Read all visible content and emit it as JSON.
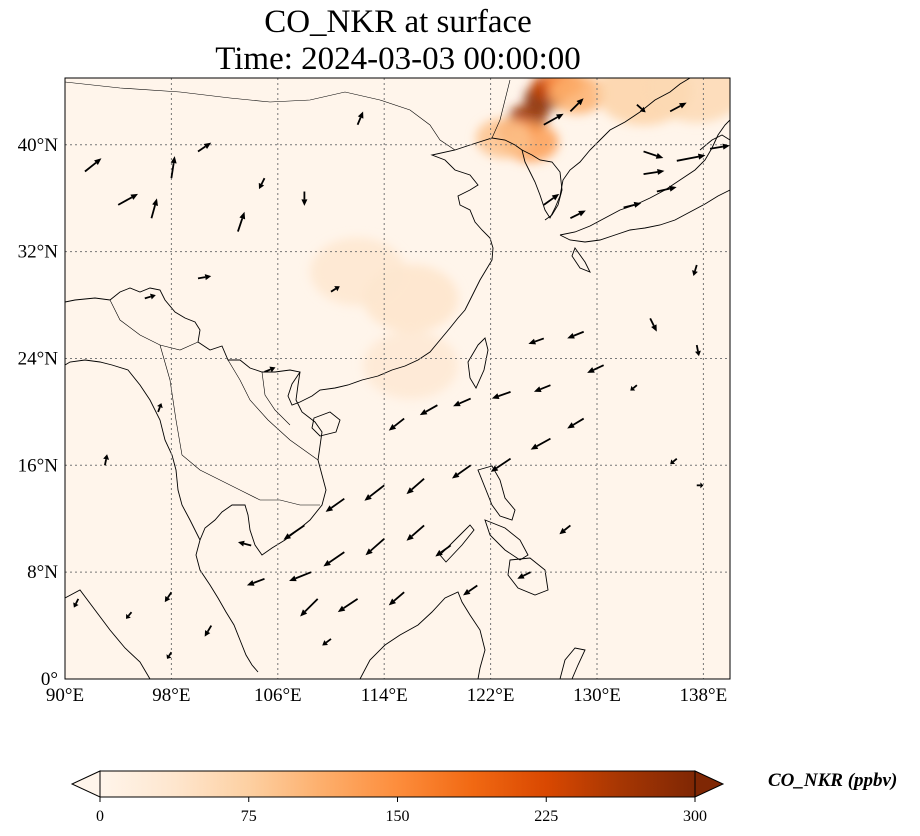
{
  "title": {
    "line1": "CO_NKR at surface",
    "line2": "Time: 2024-03-03 00:00:00"
  },
  "map": {
    "projection": "PlateCarree",
    "lon_range": [
      90,
      140
    ],
    "lat_range": [
      0,
      45
    ],
    "gridlines": "dotted gray",
    "lon_ticks": [
      {
        "value": 90,
        "label": "90°E"
      },
      {
        "value": 98,
        "label": "98°E"
      },
      {
        "value": 106,
        "label": "106°E"
      },
      {
        "value": 114,
        "label": "114°E"
      },
      {
        "value": 122,
        "label": "122°E"
      },
      {
        "value": 130,
        "label": "130°E"
      },
      {
        "value": 138,
        "label": "138°E"
      }
    ],
    "lat_ticks": [
      {
        "value": 0,
        "label": "0°"
      },
      {
        "value": 8,
        "label": "8°N"
      },
      {
        "value": 16,
        "label": "16°N"
      },
      {
        "value": 24,
        "label": "24°N"
      },
      {
        "value": 32,
        "label": "32°N"
      },
      {
        "value": 40,
        "label": "40°N"
      }
    ],
    "background_color": "#fff5eb",
    "hotspots": [
      {
        "lon": 126.0,
        "lat": 43.5,
        "value": 300
      },
      {
        "lon": 124.8,
        "lat": 42.0,
        "value": 280
      },
      {
        "lon": 126.5,
        "lat": 44.3,
        "value": 240
      },
      {
        "lon": 124.0,
        "lat": 41.0,
        "value": 200
      },
      {
        "lon": 127.5,
        "lat": 44.6,
        "value": 160
      },
      {
        "lon": 125.0,
        "lat": 40.2,
        "value": 130
      },
      {
        "lon": 128.5,
        "lat": 43.8,
        "value": 110
      },
      {
        "lon": 123.0,
        "lat": 40.5,
        "value": 90
      },
      {
        "lon": 133.5,
        "lat": 44.0,
        "value": 70
      },
      {
        "lon": 137.5,
        "lat": 44.2,
        "value": 60
      },
      {
        "lon": 116.0,
        "lat": 28.5,
        "value": 40
      },
      {
        "lon": 112.0,
        "lat": 30.5,
        "value": 35
      },
      {
        "lon": 116.0,
        "lat": 23.5,
        "value": 30
      }
    ],
    "wind_vectors": [
      {
        "lon": 91.5,
        "lat": 38,
        "u": 1.5,
        "v": 1.2
      },
      {
        "lon": 94,
        "lat": 35.5,
        "u": 1.8,
        "v": 1.0
      },
      {
        "lon": 96.5,
        "lat": 34.5,
        "u": 0.5,
        "v": 1.8
      },
      {
        "lon": 98,
        "lat": 37.5,
        "u": 0.3,
        "v": 2.0
      },
      {
        "lon": 100,
        "lat": 39.5,
        "u": 1.2,
        "v": 0.8
      },
      {
        "lon": 103,
        "lat": 33.5,
        "u": 0.6,
        "v": 1.8
      },
      {
        "lon": 105,
        "lat": 37.5,
        "u": -0.5,
        "v": -1.0
      },
      {
        "lon": 108,
        "lat": 36.5,
        "u": 0.0,
        "v": -1.3
      },
      {
        "lon": 112,
        "lat": 41.5,
        "u": 0.5,
        "v": 1.2
      },
      {
        "lon": 110,
        "lat": 29,
        "u": 0.8,
        "v": 0.5
      },
      {
        "lon": 96,
        "lat": 28.5,
        "u": 1.0,
        "v": 0.3
      },
      {
        "lon": 100,
        "lat": 30,
        "u": 1.2,
        "v": 0.2
      },
      {
        "lon": 105,
        "lat": 23,
        "u": 1.0,
        "v": 0.4
      },
      {
        "lon": 97,
        "lat": 20,
        "u": 0.3,
        "v": 0.8
      },
      {
        "lon": 93,
        "lat": 16,
        "u": 0.2,
        "v": 1.0
      },
      {
        "lon": 126,
        "lat": 41.5,
        "u": 1.8,
        "v": 1.0
      },
      {
        "lon": 128,
        "lat": 42.5,
        "u": 1.2,
        "v": 1.2
      },
      {
        "lon": 133.5,
        "lat": 39.5,
        "u": 1.8,
        "v": -0.6
      },
      {
        "lon": 136,
        "lat": 38.8,
        "u": 2.6,
        "v": 0.5
      },
      {
        "lon": 138.5,
        "lat": 39.7,
        "u": 1.8,
        "v": 0.3
      },
      {
        "lon": 133.5,
        "lat": 37.8,
        "u": 1.9,
        "v": 0.3
      },
      {
        "lon": 134.5,
        "lat": 36.5,
        "u": 1.8,
        "v": 0.4
      },
      {
        "lon": 132,
        "lat": 35.3,
        "u": 1.6,
        "v": 0.4
      },
      {
        "lon": 135.5,
        "lat": 42.5,
        "u": 1.5,
        "v": 0.8
      },
      {
        "lon": 133,
        "lat": 43,
        "u": 0.8,
        "v": -0.7
      },
      {
        "lon": 126,
        "lat": 35.5,
        "u": 1.4,
        "v": 1.0
      },
      {
        "lon": 128,
        "lat": 34.5,
        "u": 1.4,
        "v": 0.7
      },
      {
        "lon": 126,
        "lat": 25.5,
        "u": -1.4,
        "v": -0.5
      },
      {
        "lon": 129,
        "lat": 26,
        "u": -1.5,
        "v": -0.6
      },
      {
        "lon": 130.5,
        "lat": 23.5,
        "u": -1.5,
        "v": -0.7
      },
      {
        "lon": 126.5,
        "lat": 22,
        "u": -1.5,
        "v": -0.6
      },
      {
        "lon": 123.5,
        "lat": 21.5,
        "u": -1.7,
        "v": -0.6
      },
      {
        "lon": 120.5,
        "lat": 21,
        "u": -1.6,
        "v": -0.7
      },
      {
        "lon": 118,
        "lat": 20.5,
        "u": -1.6,
        "v": -0.9
      },
      {
        "lon": 115.5,
        "lat": 19.5,
        "u": -1.4,
        "v": -1.1
      },
      {
        "lon": 129,
        "lat": 19.5,
        "u": -1.5,
        "v": -0.9
      },
      {
        "lon": 126.5,
        "lat": 18,
        "u": -1.8,
        "v": -1.0
      },
      {
        "lon": 123.5,
        "lat": 16.5,
        "u": -1.8,
        "v": -1.2
      },
      {
        "lon": 120.5,
        "lat": 16,
        "u": -1.7,
        "v": -1.2
      },
      {
        "lon": 117,
        "lat": 15,
        "u": -1.6,
        "v": -1.4
      },
      {
        "lon": 114,
        "lat": 14.5,
        "u": -1.8,
        "v": -1.4
      },
      {
        "lon": 111,
        "lat": 13.5,
        "u": -1.7,
        "v": -1.2
      },
      {
        "lon": 108,
        "lat": 11.5,
        "u": -1.9,
        "v": -1.3
      },
      {
        "lon": 117,
        "lat": 11.5,
        "u": -1.6,
        "v": -1.4
      },
      {
        "lon": 114,
        "lat": 10.5,
        "u": -1.7,
        "v": -1.5
      },
      {
        "lon": 111,
        "lat": 9.5,
        "u": -1.9,
        "v": -1.3
      },
      {
        "lon": 108.5,
        "lat": 8,
        "u": -2.0,
        "v": -0.8
      },
      {
        "lon": 105,
        "lat": 7.5,
        "u": -1.6,
        "v": -0.6
      },
      {
        "lon": 112,
        "lat": 6,
        "u": -1.8,
        "v": -1.2
      },
      {
        "lon": 109,
        "lat": 6,
        "u": -1.6,
        "v": -1.6
      },
      {
        "lon": 115.5,
        "lat": 6.5,
        "u": -1.4,
        "v": -1.2
      },
      {
        "lon": 119,
        "lat": 10,
        "u": -1.4,
        "v": -1.0
      },
      {
        "lon": 125,
        "lat": 8,
        "u": -1.2,
        "v": -0.6
      },
      {
        "lon": 128,
        "lat": 11.5,
        "u": -1.0,
        "v": -0.8
      },
      {
        "lon": 121,
        "lat": 7,
        "u": -1.3,
        "v": -0.9
      },
      {
        "lon": 101,
        "lat": 4,
        "u": -0.6,
        "v": -1.0
      },
      {
        "lon": 98,
        "lat": 6.5,
        "u": -0.6,
        "v": -0.9
      },
      {
        "lon": 104,
        "lat": 10,
        "u": -1.2,
        "v": 0.3
      },
      {
        "lon": 110,
        "lat": 3,
        "u": -0.8,
        "v": -0.6
      },
      {
        "lon": 95,
        "lat": 5,
        "u": -0.5,
        "v": -0.6
      },
      {
        "lon": 91,
        "lat": 6,
        "u": -0.4,
        "v": -0.8
      },
      {
        "lon": 98,
        "lat": 2,
        "u": -0.4,
        "v": -0.6
      },
      {
        "lon": 134,
        "lat": 27,
        "u": 0.6,
        "v": -1.2
      },
      {
        "lon": 137.5,
        "lat": 25,
        "u": 0.2,
        "v": -1.0
      },
      {
        "lon": 136,
        "lat": 16.5,
        "u": -0.6,
        "v": -0.5
      },
      {
        "lon": 137.5,
        "lat": 14.5,
        "u": 0.6,
        "v": 0.0
      },
      {
        "lon": 133,
        "lat": 22,
        "u": -0.6,
        "v": -0.5
      },
      {
        "lon": 137.5,
        "lat": 31,
        "u": -0.3,
        "v": -1.0
      }
    ]
  },
  "colorbar": {
    "label": "CO_NKR (ppbv)",
    "min": 0,
    "max": 300,
    "ticks": [
      {
        "value": 0,
        "label": "0"
      },
      {
        "value": 75,
        "label": "75"
      },
      {
        "value": 150,
        "label": "150"
      },
      {
        "value": 225,
        "label": "225"
      },
      {
        "value": 300,
        "label": "300"
      }
    ],
    "colormap_stops": [
      "#fff5eb",
      "#fee6ce",
      "#fdd0a2",
      "#fdae6b",
      "#fd8d3c",
      "#f16913",
      "#d94801",
      "#a63603",
      "#7f2704"
    ]
  }
}
